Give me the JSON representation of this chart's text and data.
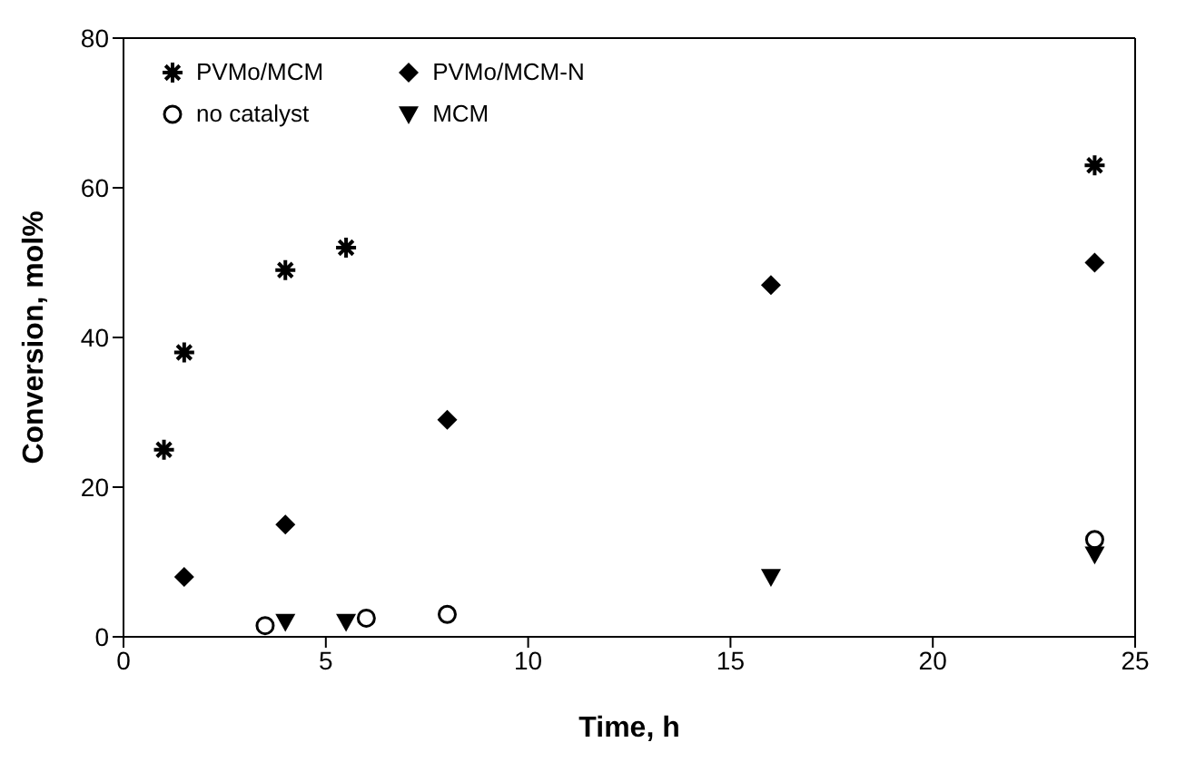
{
  "chart_data": {
    "type": "scatter",
    "xlabel": "Time, h",
    "ylabel": "Conversion, mol%",
    "xlim": [
      0,
      25
    ],
    "xticks": [
      0,
      5,
      10,
      15,
      20,
      25
    ],
    "ylim": [
      0,
      80
    ],
    "yticks": [
      0,
      20,
      40,
      60,
      80
    ],
    "legend": "top left",
    "grid": false,
    "series": [
      {
        "name": "PVMo/MCM",
        "color": "#000000",
        "marker": "cross",
        "x": [
          1,
          1.5,
          4,
          5.5,
          24
        ],
        "values": [
          25,
          38,
          49,
          52,
          63
        ]
      },
      {
        "name": "PVMo/MCM-N",
        "color": "#000000",
        "marker": "diamond",
        "x": [
          1.5,
          4,
          8,
          16,
          24
        ],
        "values": [
          8,
          15,
          29,
          47,
          50
        ]
      },
      {
        "name": "no catalyst",
        "color": "#000000",
        "marker": "circle",
        "x": [
          3.5,
          6,
          8,
          24
        ],
        "values": [
          1.5,
          2.5,
          3,
          13
        ]
      },
      {
        "name": "MCM",
        "color": "#000000",
        "marker": "triangle",
        "x": [
          4,
          5.5,
          16,
          24
        ],
        "values": [
          2,
          2,
          8,
          11
        ]
      }
    ]
  }
}
